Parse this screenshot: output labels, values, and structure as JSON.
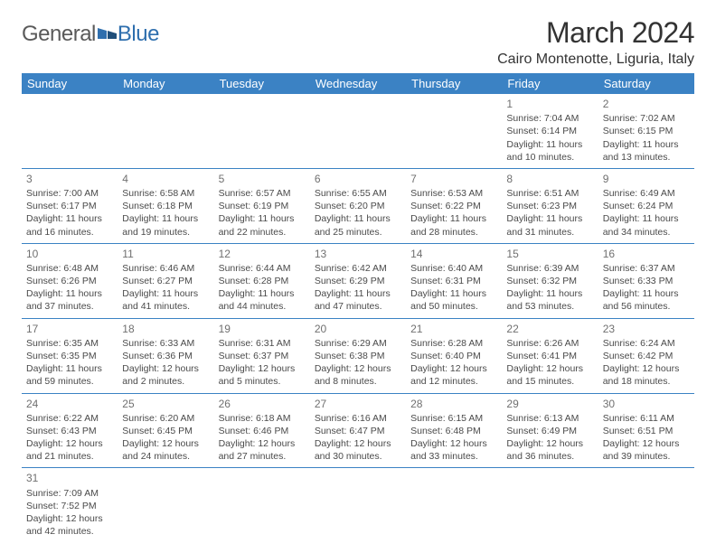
{
  "logo": {
    "part1": "General",
    "part2": "Blue"
  },
  "title": "March 2024",
  "location": "Cairo Montenotte, Liguria, Italy",
  "header_bg": "#3b82c4",
  "header_fg": "#ffffff",
  "border_color": "#3b82c4",
  "text_color": "#4a4a4a",
  "daynum_color": "#707070",
  "logo_gray": "#5a5a5a",
  "logo_blue": "#2f6fae",
  "days": [
    "Sunday",
    "Monday",
    "Tuesday",
    "Wednesday",
    "Thursday",
    "Friday",
    "Saturday"
  ],
  "weeks": [
    [
      null,
      null,
      null,
      null,
      null,
      {
        "n": "1",
        "sr": "7:04 AM",
        "ss": "6:14 PM",
        "dl": "11 hours and 10 minutes."
      },
      {
        "n": "2",
        "sr": "7:02 AM",
        "ss": "6:15 PM",
        "dl": "11 hours and 13 minutes."
      }
    ],
    [
      {
        "n": "3",
        "sr": "7:00 AM",
        "ss": "6:17 PM",
        "dl": "11 hours and 16 minutes."
      },
      {
        "n": "4",
        "sr": "6:58 AM",
        "ss": "6:18 PM",
        "dl": "11 hours and 19 minutes."
      },
      {
        "n": "5",
        "sr": "6:57 AM",
        "ss": "6:19 PM",
        "dl": "11 hours and 22 minutes."
      },
      {
        "n": "6",
        "sr": "6:55 AM",
        "ss": "6:20 PM",
        "dl": "11 hours and 25 minutes."
      },
      {
        "n": "7",
        "sr": "6:53 AM",
        "ss": "6:22 PM",
        "dl": "11 hours and 28 minutes."
      },
      {
        "n": "8",
        "sr": "6:51 AM",
        "ss": "6:23 PM",
        "dl": "11 hours and 31 minutes."
      },
      {
        "n": "9",
        "sr": "6:49 AM",
        "ss": "6:24 PM",
        "dl": "11 hours and 34 minutes."
      }
    ],
    [
      {
        "n": "10",
        "sr": "6:48 AM",
        "ss": "6:26 PM",
        "dl": "11 hours and 37 minutes."
      },
      {
        "n": "11",
        "sr": "6:46 AM",
        "ss": "6:27 PM",
        "dl": "11 hours and 41 minutes."
      },
      {
        "n": "12",
        "sr": "6:44 AM",
        "ss": "6:28 PM",
        "dl": "11 hours and 44 minutes."
      },
      {
        "n": "13",
        "sr": "6:42 AM",
        "ss": "6:29 PM",
        "dl": "11 hours and 47 minutes."
      },
      {
        "n": "14",
        "sr": "6:40 AM",
        "ss": "6:31 PM",
        "dl": "11 hours and 50 minutes."
      },
      {
        "n": "15",
        "sr": "6:39 AM",
        "ss": "6:32 PM",
        "dl": "11 hours and 53 minutes."
      },
      {
        "n": "16",
        "sr": "6:37 AM",
        "ss": "6:33 PM",
        "dl": "11 hours and 56 minutes."
      }
    ],
    [
      {
        "n": "17",
        "sr": "6:35 AM",
        "ss": "6:35 PM",
        "dl": "11 hours and 59 minutes."
      },
      {
        "n": "18",
        "sr": "6:33 AM",
        "ss": "6:36 PM",
        "dl": "12 hours and 2 minutes."
      },
      {
        "n": "19",
        "sr": "6:31 AM",
        "ss": "6:37 PM",
        "dl": "12 hours and 5 minutes."
      },
      {
        "n": "20",
        "sr": "6:29 AM",
        "ss": "6:38 PM",
        "dl": "12 hours and 8 minutes."
      },
      {
        "n": "21",
        "sr": "6:28 AM",
        "ss": "6:40 PM",
        "dl": "12 hours and 12 minutes."
      },
      {
        "n": "22",
        "sr": "6:26 AM",
        "ss": "6:41 PM",
        "dl": "12 hours and 15 minutes."
      },
      {
        "n": "23",
        "sr": "6:24 AM",
        "ss": "6:42 PM",
        "dl": "12 hours and 18 minutes."
      }
    ],
    [
      {
        "n": "24",
        "sr": "6:22 AM",
        "ss": "6:43 PM",
        "dl": "12 hours and 21 minutes."
      },
      {
        "n": "25",
        "sr": "6:20 AM",
        "ss": "6:45 PM",
        "dl": "12 hours and 24 minutes."
      },
      {
        "n": "26",
        "sr": "6:18 AM",
        "ss": "6:46 PM",
        "dl": "12 hours and 27 minutes."
      },
      {
        "n": "27",
        "sr": "6:16 AM",
        "ss": "6:47 PM",
        "dl": "12 hours and 30 minutes."
      },
      {
        "n": "28",
        "sr": "6:15 AM",
        "ss": "6:48 PM",
        "dl": "12 hours and 33 minutes."
      },
      {
        "n": "29",
        "sr": "6:13 AM",
        "ss": "6:49 PM",
        "dl": "12 hours and 36 minutes."
      },
      {
        "n": "30",
        "sr": "6:11 AM",
        "ss": "6:51 PM",
        "dl": "12 hours and 39 minutes."
      }
    ],
    [
      {
        "n": "31",
        "sr": "7:09 AM",
        "ss": "7:52 PM",
        "dl": "12 hours and 42 minutes."
      },
      null,
      null,
      null,
      null,
      null,
      null
    ]
  ],
  "labels": {
    "sunrise": "Sunrise:",
    "sunset": "Sunset:",
    "daylight": "Daylight:"
  }
}
